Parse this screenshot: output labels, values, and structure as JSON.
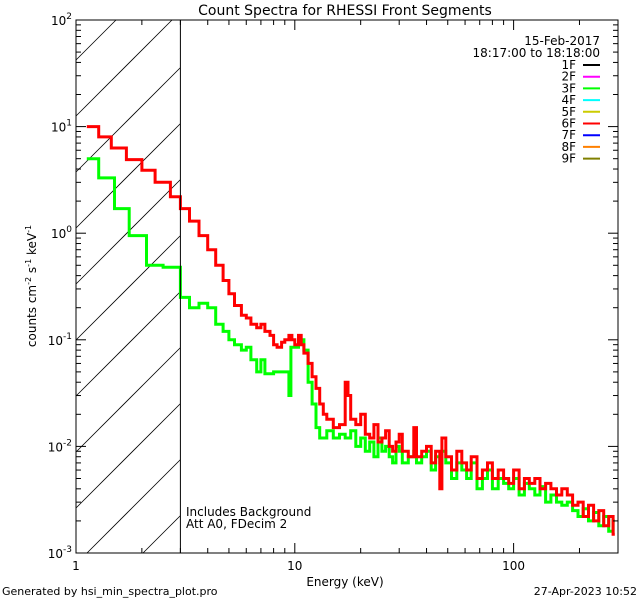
{
  "chart_data": {
    "type": "line",
    "title": "Count Spectra for RHESSI Front Segments",
    "xlabel": "Energy (keV)",
    "ylabel": "counts cm-2 s-1 keV-1",
    "ylabel_parts": [
      "counts cm",
      "-2",
      " s",
      "-1",
      " keV",
      "-1"
    ],
    "xscale": "log",
    "yscale": "log",
    "xlim": [
      1,
      300
    ],
    "ylim": [
      0.001,
      100
    ],
    "x_tick_labels": [
      {
        "value": 1,
        "label": "1"
      },
      {
        "value": 10,
        "label": "10"
      },
      {
        "value": 100,
        "label": "100"
      }
    ],
    "y_tick_labels": [
      {
        "value": 0.001,
        "base": "10",
        "exp": "-3"
      },
      {
        "value": 0.01,
        "base": "10",
        "exp": "-2"
      },
      {
        "value": 0.1,
        "base": "10",
        "exp": "-1"
      },
      {
        "value": 1,
        "base": "10",
        "exp": "0"
      },
      {
        "value": 10,
        "base": "10",
        "exp": "1"
      },
      {
        "value": 100,
        "base": "10",
        "exp": "2"
      }
    ],
    "date": "15-Feb-2017",
    "time_range": "18:17:00 to 18:18:00",
    "legend_position": "top-right",
    "legend": [
      {
        "label": "1F",
        "color": "#000000"
      },
      {
        "label": "2F",
        "color": "#ff00ff"
      },
      {
        "label": "3F",
        "color": "#00ff00"
      },
      {
        "label": "4F",
        "color": "#00ffff"
      },
      {
        "label": "5F",
        "color": "#cccc00"
      },
      {
        "label": "6F",
        "color": "#ff0000"
      },
      {
        "label": "7F",
        "color": "#0000ff"
      },
      {
        "label": "8F",
        "color": "#ff8000"
      },
      {
        "label": "9F",
        "color": "#808000"
      }
    ],
    "hatched_region_max_energy": 3,
    "annotations": [
      "Includes Background",
      "Att A0, FDecim 2"
    ],
    "series": [
      {
        "name": "6F",
        "color": "#ff0000",
        "end_energy": 290,
        "bins": [
          [
            1.12,
            10
          ],
          [
            1.27,
            8.0
          ],
          [
            1.45,
            6.3
          ],
          [
            1.7,
            4.9
          ],
          [
            2.0,
            3.9
          ],
          [
            2.3,
            3.0
          ],
          [
            2.7,
            2.2
          ],
          [
            3.0,
            1.7
          ],
          [
            3.3,
            1.3
          ],
          [
            3.65,
            0.95
          ],
          [
            4.0,
            0.7
          ],
          [
            4.35,
            0.5
          ],
          [
            4.7,
            0.36
          ],
          [
            5.0,
            0.27
          ],
          [
            5.3,
            0.21
          ],
          [
            5.7,
            0.17
          ],
          [
            6.0,
            0.16
          ],
          [
            6.3,
            0.14
          ],
          [
            6.7,
            0.13
          ],
          [
            7.0,
            0.14
          ],
          [
            7.3,
            0.12
          ],
          [
            7.7,
            0.11
          ],
          [
            8.0,
            0.09
          ],
          [
            8.3,
            0.085
          ],
          [
            8.7,
            0.095
          ],
          [
            9.0,
            0.1
          ],
          [
            9.4,
            0.11
          ],
          [
            9.7,
            0.1
          ],
          [
            10.0,
            0.09
          ],
          [
            10.4,
            0.11
          ],
          [
            10.7,
            0.09
          ],
          [
            11.0,
            0.075
          ],
          [
            11.5,
            0.06
          ],
          [
            12.0,
            0.045
          ],
          [
            12.5,
            0.035
          ],
          [
            13.0,
            0.025
          ],
          [
            13.5,
            0.02
          ],
          [
            14.0,
            0.018
          ],
          [
            15.0,
            0.015
          ],
          [
            16.0,
            0.016
          ],
          [
            17.0,
            0.04
          ],
          [
            17.5,
            0.03
          ],
          [
            18.0,
            0.018
          ],
          [
            19.0,
            0.016
          ],
          [
            20,
            0.02
          ],
          [
            21,
            0.013
          ],
          [
            22,
            0.012
          ],
          [
            23,
            0.016
          ],
          [
            24,
            0.011
          ],
          [
            25,
            0.012
          ],
          [
            26,
            0.014
          ],
          [
            27,
            0.01
          ],
          [
            28,
            0.009
          ],
          [
            29,
            0.011
          ],
          [
            30,
            0.013
          ],
          [
            31,
            0.009
          ],
          [
            33,
            0.008
          ],
          [
            35,
            0.015
          ],
          [
            36,
            0.008
          ],
          [
            38,
            0.009
          ],
          [
            40,
            0.01
          ],
          [
            42,
            0.007
          ],
          [
            44,
            0.009
          ],
          [
            46,
            0.004
          ],
          [
            47,
            0.012
          ],
          [
            49,
            0.008
          ],
          [
            52,
            0.006
          ],
          [
            55,
            0.009
          ],
          [
            58,
            0.007
          ],
          [
            61,
            0.006
          ],
          [
            64,
            0.008
          ],
          [
            68,
            0.005
          ],
          [
            72,
            0.006
          ],
          [
            76,
            0.007
          ],
          [
            80,
            0.005
          ],
          [
            85,
            0.006
          ],
          [
            90,
            0.005
          ],
          [
            95,
            0.0045
          ],
          [
            100,
            0.006
          ],
          [
            106,
            0.004
          ],
          [
            112,
            0.005
          ],
          [
            118,
            0.0045
          ],
          [
            125,
            0.005
          ],
          [
            132,
            0.004
          ],
          [
            140,
            0.0045
          ],
          [
            148,
            0.004
          ],
          [
            157,
            0.0035
          ],
          [
            166,
            0.004
          ],
          [
            176,
            0.0035
          ],
          [
            186,
            0.0028
          ],
          [
            197,
            0.003
          ],
          [
            208,
            0.0022
          ],
          [
            220,
            0.0028
          ],
          [
            232,
            0.002
          ],
          [
            245,
            0.0025
          ],
          [
            258,
            0.0018
          ],
          [
            272,
            0.0022
          ],
          [
            285,
            0.0015
          ]
        ]
      },
      {
        "name": "3F",
        "color": "#00ff00",
        "end_energy": 290,
        "bins": [
          [
            1.12,
            5.0
          ],
          [
            1.27,
            3.3
          ],
          [
            1.5,
            1.7
          ],
          [
            1.75,
            0.95
          ],
          [
            2.1,
            0.5
          ],
          [
            2.5,
            0.48
          ],
          [
            3.0,
            0.25
          ],
          [
            3.3,
            0.2
          ],
          [
            3.65,
            0.22
          ],
          [
            4.0,
            0.2
          ],
          [
            4.35,
            0.14
          ],
          [
            4.7,
            0.12
          ],
          [
            5.0,
            0.1
          ],
          [
            5.3,
            0.09
          ],
          [
            5.7,
            0.08
          ],
          [
            6.0,
            0.085
          ],
          [
            6.3,
            0.065
          ],
          [
            6.7,
            0.05
          ],
          [
            7.0,
            0.065
          ],
          [
            7.3,
            0.048
          ],
          [
            8.0,
            0.05
          ],
          [
            9.4,
            0.03
          ],
          [
            9.6,
            0.085
          ],
          [
            10.4,
            0.1
          ],
          [
            11.0,
            0.08
          ],
          [
            11.5,
            0.04
          ],
          [
            12.0,
            0.025
          ],
          [
            12.5,
            0.015
          ],
          [
            13.0,
            0.012
          ],
          [
            14.0,
            0.014
          ],
          [
            15.0,
            0.012
          ],
          [
            16.0,
            0.013
          ],
          [
            17.0,
            0.012
          ],
          [
            18.0,
            0.014
          ],
          [
            19.0,
            0.01
          ],
          [
            20,
            0.012
          ],
          [
            21,
            0.009
          ],
          [
            22,
            0.011
          ],
          [
            23,
            0.008
          ],
          [
            24,
            0.012
          ],
          [
            25,
            0.009
          ],
          [
            26,
            0.01
          ],
          [
            27,
            0.008
          ],
          [
            28,
            0.007
          ],
          [
            29,
            0.01
          ],
          [
            30,
            0.009
          ],
          [
            31,
            0.007
          ],
          [
            33,
            0.008
          ],
          [
            35,
            0.009
          ],
          [
            36,
            0.007
          ],
          [
            38,
            0.008
          ],
          [
            40,
            0.009
          ],
          [
            42,
            0.006
          ],
          [
            44,
            0.008
          ],
          [
            46,
            0.007
          ],
          [
            47,
            0.009
          ],
          [
            49,
            0.007
          ],
          [
            52,
            0.005
          ],
          [
            55,
            0.007
          ],
          [
            58,
            0.006
          ],
          [
            61,
            0.005
          ],
          [
            64,
            0.007
          ],
          [
            68,
            0.004
          ],
          [
            72,
            0.005
          ],
          [
            76,
            0.006
          ],
          [
            80,
            0.004
          ],
          [
            85,
            0.005
          ],
          [
            90,
            0.0045
          ],
          [
            95,
            0.004
          ],
          [
            100,
            0.005
          ],
          [
            106,
            0.0035
          ],
          [
            112,
            0.0045
          ],
          [
            118,
            0.004
          ],
          [
            125,
            0.0035
          ],
          [
            132,
            0.0042
          ],
          [
            140,
            0.003
          ],
          [
            148,
            0.0035
          ],
          [
            157,
            0.003
          ],
          [
            166,
            0.0028
          ],
          [
            176,
            0.003
          ],
          [
            186,
            0.0025
          ],
          [
            197,
            0.0022
          ],
          [
            208,
            0.0026
          ],
          [
            220,
            0.002
          ],
          [
            232,
            0.0024
          ],
          [
            245,
            0.0018
          ],
          [
            258,
            0.0022
          ],
          [
            272,
            0.0016
          ],
          [
            285,
            0.002
          ]
        ]
      }
    ]
  },
  "footer": {
    "generated_by": "Generated by hsi_min_spectra_plot.pro",
    "timestamp": "27-Apr-2023 10:52"
  }
}
